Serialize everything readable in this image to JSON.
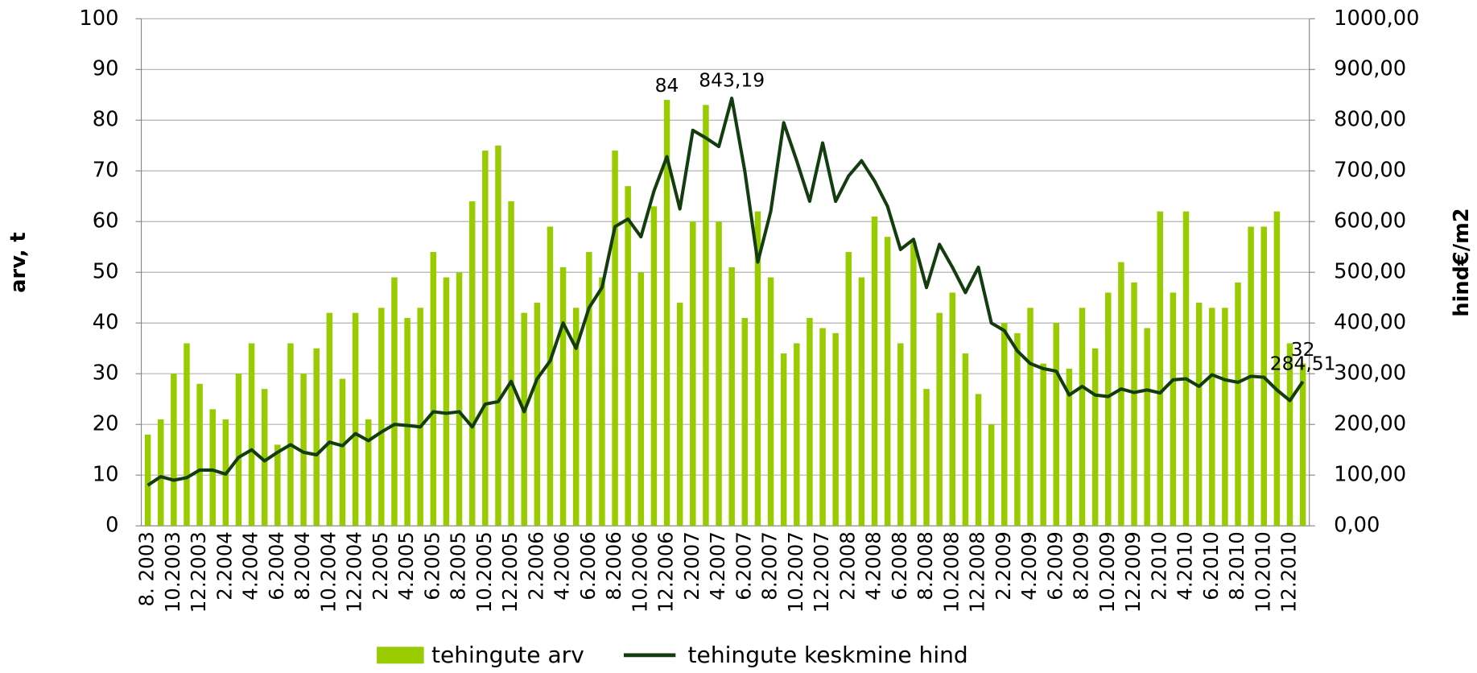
{
  "chart_data": {
    "type": "bar_line",
    "y_label": "arv, t",
    "y2_label": "hind€/m2",
    "categories": [
      "8. 2003",
      null,
      "10.2003",
      null,
      "12.2003",
      null,
      "2.2004",
      null,
      "4.2004",
      null,
      "6.2004",
      null,
      "8.2004",
      null,
      "10.2004",
      null,
      "12.2004",
      null,
      "2.2005",
      null,
      "4.2005",
      null,
      "6.2005",
      null,
      "8.2005",
      null,
      "10.2005",
      null,
      "12.2005",
      null,
      "2.2006",
      null,
      "4.2006",
      null,
      "6.2006",
      null,
      "8.2006",
      null,
      "10.2006",
      null,
      "12.2006",
      null,
      "2.2007",
      null,
      "4.2007",
      null,
      "6.2007",
      null,
      "8.2007",
      null,
      "10.2007",
      null,
      "12.2007",
      null,
      "2.2008",
      null,
      "4.2008",
      null,
      "6.2008",
      null,
      "8.2008",
      null,
      "10.2008",
      null,
      "12.2008",
      null,
      "2.2009",
      null,
      "4.2009",
      null,
      "6.2009",
      null,
      "8.2009",
      null,
      "10.2009",
      null,
      "12.2009",
      null,
      "2.2010",
      null,
      "4.2010",
      null,
      "6.2010",
      null,
      "8.2010",
      null,
      "10.2010",
      null,
      "12.2010",
      null
    ],
    "series": [
      {
        "name": "tehingute arv",
        "type": "bar",
        "color": "#99cc00",
        "values": [
          18,
          21,
          30,
          36,
          28,
          23,
          21,
          30,
          36,
          27,
          16,
          36,
          30,
          35,
          42,
          29,
          42,
          21,
          43,
          49,
          41,
          43,
          54,
          49,
          50,
          64,
          74,
          75,
          64,
          42,
          44,
          59,
          51,
          43,
          54,
          49,
          74,
          67,
          50,
          63,
          84,
          44,
          60,
          83,
          60,
          51,
          41,
          62,
          49,
          34,
          36,
          41,
          39,
          38,
          54,
          49,
          61,
          57,
          36,
          56,
          27,
          42,
          46,
          34,
          26,
          20,
          40,
          38,
          43,
          32,
          40,
          31,
          43,
          35,
          46,
          52,
          48,
          39,
          62,
          46,
          62,
          44,
          43,
          43,
          48,
          59,
          59,
          62,
          36,
          32
        ],
        "value_labels": [
          null,
          null,
          null,
          null,
          null,
          null,
          null,
          null,
          null,
          null,
          null,
          null,
          null,
          null,
          null,
          null,
          null,
          null,
          null,
          null,
          null,
          null,
          null,
          null,
          null,
          null,
          null,
          null,
          null,
          null,
          null,
          null,
          null,
          null,
          null,
          null,
          null,
          null,
          null,
          null,
          "84",
          null,
          null,
          null,
          null,
          null,
          null,
          null,
          null,
          null,
          null,
          null,
          null,
          null,
          null,
          null,
          null,
          null,
          null,
          null,
          null,
          null,
          null,
          null,
          null,
          null,
          null,
          null,
          null,
          null,
          null,
          null,
          null,
          null,
          null,
          null,
          null,
          null,
          null,
          null,
          null,
          null,
          null,
          null,
          null,
          null,
          null,
          null,
          null,
          "32"
        ]
      },
      {
        "name": "tehingute keskmine hind",
        "type": "line",
        "axis": "y2",
        "color": "#133d0f",
        "values": [
          80,
          97,
          90,
          95,
          110,
          110,
          102,
          135,
          150,
          128,
          145,
          160,
          145,
          140,
          165,
          158,
          182,
          168,
          185,
          200,
          198,
          195,
          225,
          222,
          225,
          195,
          240,
          245,
          285,
          225,
          290,
          325,
          400,
          350,
          430,
          470,
          590,
          605,
          570,
          660,
          728,
          625,
          780,
          765,
          748,
          843.19,
          700,
          520,
          620,
          795,
          720,
          640,
          755,
          640,
          690,
          720,
          680,
          630,
          545,
          565,
          470,
          555,
          510,
          460,
          510,
          400,
          385,
          345,
          320,
          310,
          305,
          258,
          275,
          258,
          255,
          270,
          263,
          268,
          262,
          288,
          290,
          275,
          298,
          288,
          283,
          295,
          293,
          268,
          247,
          284.51
        ],
        "value_labels": [
          null,
          null,
          null,
          null,
          null,
          null,
          null,
          null,
          null,
          null,
          null,
          null,
          null,
          null,
          null,
          null,
          null,
          null,
          null,
          null,
          null,
          null,
          null,
          null,
          null,
          null,
          null,
          null,
          null,
          null,
          null,
          null,
          null,
          null,
          null,
          null,
          null,
          null,
          null,
          null,
          null,
          null,
          null,
          null,
          null,
          "843,19",
          null,
          null,
          null,
          null,
          null,
          null,
          null,
          null,
          null,
          null,
          null,
          null,
          null,
          null,
          null,
          null,
          null,
          null,
          null,
          null,
          null,
          null,
          null,
          null,
          null,
          null,
          null,
          null,
          null,
          null,
          null,
          null,
          null,
          null,
          null,
          null,
          null,
          null,
          null,
          null,
          null,
          null,
          null,
          "284,51"
        ]
      }
    ],
    "ylim": [
      0,
      100
    ],
    "yticks": [
      0,
      10,
      20,
      30,
      40,
      50,
      60,
      70,
      80,
      90,
      100
    ],
    "y2lim": [
      0,
      1000
    ],
    "y2ticks": [
      {
        "value": 0,
        "label": "0,00"
      },
      {
        "value": 100,
        "label": "100,00"
      },
      {
        "value": 200,
        "label": "200,00"
      },
      {
        "value": 300,
        "label": "300,00"
      },
      {
        "value": 400,
        "label": "400,00"
      },
      {
        "value": 500,
        "label": "500,00"
      },
      {
        "value": 600,
        "label": "600,00"
      },
      {
        "value": 700,
        "label": "700,00"
      },
      {
        "value": 800,
        "label": "800,00"
      },
      {
        "value": 900,
        "label": "900,00"
      },
      {
        "value": 1000,
        "label": "1000,00"
      }
    ],
    "grid": true,
    "legend": "bottom"
  }
}
